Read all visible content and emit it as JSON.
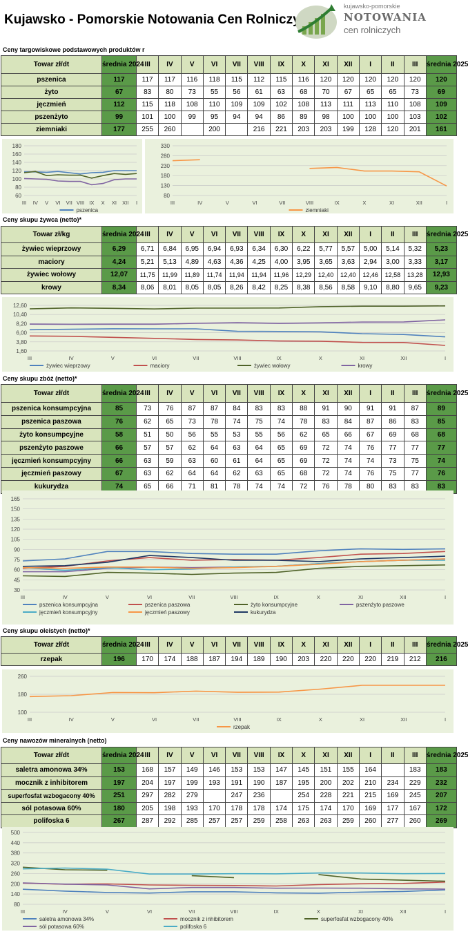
{
  "header": {
    "title": "Kujawsko - Pomorskie Notowania Cen Rolniczych",
    "logo_line1": "kujawsko-pomorskie",
    "logo_line2": "NOTOWANIA",
    "logo_line3": "cen rolniczych"
  },
  "colors": {
    "header_bg": "#d8e4bc",
    "avg_bg": "#5a9a48",
    "chart_bg": "#eaf1dd"
  },
  "months": [
    "III",
    "IV",
    "V",
    "VI",
    "VII",
    "VIII",
    "IX",
    "X",
    "XI",
    "XII",
    "I",
    "II",
    "III"
  ],
  "avg2024_label": "średnia 2024",
  "avg2025_label": "średnia 2025",
  "sections": [
    {
      "title": "Ceny targowiskowe podstawowych produktów r",
      "unit_label": "Towar zł/dt",
      "rows": [
        {
          "name": "pszenica",
          "avg2024": "117",
          "values": [
            "117",
            "117",
            "116",
            "118",
            "115",
            "112",
            "115",
            "116",
            "120",
            "120",
            "120",
            "120",
            "120"
          ],
          "avg2025": "120"
        },
        {
          "name": "żyto",
          "avg2024": "67",
          "values": [
            "83",
            "80",
            "73",
            "55",
            "56",
            "61",
            "63",
            "68",
            "70",
            "67",
            "65",
            "65",
            "73"
          ],
          "avg2025": "69"
        },
        {
          "name": "jęczmień",
          "avg2024": "112",
          "values": [
            "115",
            "118",
            "108",
            "110",
            "109",
            "109",
            "102",
            "108",
            "113",
            "111",
            "113",
            "110",
            "108"
          ],
          "avg2025": "109"
        },
        {
          "name": "pszenżyto",
          "avg2024": "99",
          "values": [
            "101",
            "100",
            "99",
            "95",
            "94",
            "94",
            "86",
            "89",
            "98",
            "100",
            "100",
            "100",
            "103"
          ],
          "avg2025": "102"
        },
        {
          "name": "ziemniaki",
          "avg2024": "177",
          "values": [
            "255",
            "260",
            "",
            "200",
            "",
            "216",
            "221",
            "203",
            "203",
            "199",
            "128",
            "120",
            "201"
          ],
          "avg2025": "161"
        }
      ]
    },
    {
      "title": "Ceny skupu żywca (netto)*",
      "unit_label": "Towar zł/kg",
      "rows": [
        {
          "name": "żywiec wieprzowy",
          "avg2024": "6,29",
          "values": [
            "6,71",
            "6,84",
            "6,95",
            "6,94",
            "6,93",
            "6,34",
            "6,30",
            "6,22",
            "5,77",
            "5,57",
            "5,00",
            "5,14",
            "5,32"
          ],
          "avg2025": "5,23"
        },
        {
          "name": "maciory",
          "avg2024": "4,24",
          "values": [
            "5,21",
            "5,13",
            "4,89",
            "4,63",
            "4,36",
            "4,25",
            "4,00",
            "3,95",
            "3,65",
            "3,63",
            "2,94",
            "3,00",
            "3,33"
          ],
          "avg2025": "3,17"
        },
        {
          "name": "żywiec wołowy",
          "avg2024": "12,07",
          "values": [
            "11,75",
            "11,99",
            "11,89",
            "11,74",
            "11,94",
            "11,94",
            "11,96",
            "12,29",
            "12,40",
            "12,40",
            "12,46",
            "12,58",
            "13,28"
          ],
          "avg2025": "12,93"
        },
        {
          "name": "krowy",
          "avg2024": "8,34",
          "values": [
            "8,06",
            "8,01",
            "8,05",
            "8,05",
            "8,26",
            "8,42",
            "8,25",
            "8,38",
            "8,56",
            "8,58",
            "9,10",
            "8,80",
            "9,65"
          ],
          "avg2025": "9,23"
        }
      ]
    },
    {
      "title": "Ceny skupu zbóż (netto)*",
      "unit_label": "Towar zł/dt",
      "rows": [
        {
          "name": "pszenica konsumpcyjna",
          "avg2024": "85",
          "values": [
            "73",
            "76",
            "87",
            "87",
            "84",
            "83",
            "83",
            "88",
            "91",
            "90",
            "91",
            "91",
            "87"
          ],
          "avg2025": "89"
        },
        {
          "name": "pszenica paszowa",
          "avg2024": "76",
          "values": [
            "62",
            "65",
            "73",
            "78",
            "74",
            "75",
            "74",
            "78",
            "83",
            "84",
            "87",
            "86",
            "83"
          ],
          "avg2025": "85"
        },
        {
          "name": "żyto konsumpcyjne",
          "avg2024": "58",
          "values": [
            "51",
            "50",
            "56",
            "55",
            "53",
            "55",
            "56",
            "62",
            "65",
            "66",
            "67",
            "69",
            "68"
          ],
          "avg2025": "68"
        },
        {
          "name": "pszenżyto paszowe",
          "avg2024": "66",
          "values": [
            "57",
            "57",
            "62",
            "64",
            "63",
            "64",
            "65",
            "69",
            "72",
            "74",
            "76",
            "77",
            "77"
          ],
          "avg2025": "77"
        },
        {
          "name": "jęczmień konsumpcyjny",
          "avg2024": "66",
          "values": [
            "63",
            "59",
            "63",
            "60",
            "61",
            "64",
            "65",
            "69",
            "72",
            "74",
            "74",
            "73",
            "75"
          ],
          "avg2025": "74"
        },
        {
          "name": "jęczmień paszowy",
          "avg2024": "67",
          "values": [
            "63",
            "62",
            "64",
            "64",
            "62",
            "63",
            "65",
            "68",
            "72",
            "74",
            "76",
            "75",
            "77"
          ],
          "avg2025": "76"
        },
        {
          "name": "kukurydza",
          "avg2024": "74",
          "values": [
            "65",
            "66",
            "71",
            "81",
            "78",
            "74",
            "74",
            "72",
            "76",
            "78",
            "80",
            "83",
            "83"
          ],
          "avg2025": "83"
        }
      ]
    },
    {
      "title": "Ceny skupu oleistych (netto)*",
      "unit_label": "Towar zł/dt",
      "rows": [
        {
          "name": "rzepak",
          "avg2024": "196",
          "values": [
            "170",
            "174",
            "188",
            "187",
            "194",
            "189",
            "190",
            "203",
            "220",
            "220",
            "220",
            "219",
            "212"
          ],
          "avg2025": "216"
        }
      ]
    },
    {
      "title": "Ceny nawozów mineralnych (netto)",
      "unit_label": "Towar zł/dt",
      "rows": [
        {
          "name": "saletra amonowa 34%",
          "avg2024": "153",
          "values": [
            "168",
            "157",
            "149",
            "146",
            "153",
            "153",
            "147",
            "145",
            "151",
            "155",
            "164",
            "",
            "183"
          ],
          "avg2025": "183"
        },
        {
          "name": "mocznik z inhibitorem",
          "avg2024": "197",
          "values": [
            "204",
            "197",
            "199",
            "193",
            "191",
            "190",
            "187",
            "195",
            "200",
            "202",
            "210",
            "234",
            "229"
          ],
          "avg2025": "232"
        },
        {
          "name": "superfosfat wzbogacony 40%",
          "avg2024": "251",
          "values": [
            "297",
            "282",
            "279",
            "",
            "247",
            "236",
            "",
            "254",
            "228",
            "221",
            "215",
            "169",
            "245"
          ],
          "avg2025": "207"
        },
        {
          "name": "sól potasowa 60%",
          "avg2024": "180",
          "values": [
            "205",
            "198",
            "193",
            "170",
            "178",
            "178",
            "174",
            "175",
            "174",
            "170",
            "169",
            "177",
            "167"
          ],
          "avg2025": "172"
        },
        {
          "name": "polifoska 6",
          "avg2024": "267",
          "values": [
            "287",
            "292",
            "285",
            "257",
            "257",
            "259",
            "258",
            "263",
            "263",
            "259",
            "260",
            "277",
            "260"
          ],
          "avg2025": "269"
        }
      ]
    }
  ],
  "chart_data": [
    {
      "type": "line",
      "x": [
        "III",
        "IV",
        "V",
        "VI",
        "VII",
        "VIII",
        "IX",
        "X",
        "XI",
        "XII",
        "I"
      ],
      "ylim": [
        60,
        180
      ],
      "yticks": [
        "60",
        "80",
        "100",
        "120",
        "140",
        "160",
        "180"
      ],
      "legend": "bottom",
      "series": [
        {
          "name": "pszenica",
          "color": "#4f81bd",
          "values": [
            117,
            117,
            116,
            118,
            115,
            112,
            115,
            116,
            120,
            120,
            120
          ]
        },
        {
          "name": "",
          "color": "#4f6228",
          "values": [
            115,
            118,
            108,
            110,
            109,
            109,
            102,
            108,
            113,
            111,
            113
          ]
        },
        {
          "name": "",
          "color": "#8064a2",
          "values": [
            101,
            100,
            99,
            95,
            94,
            94,
            86,
            89,
            98,
            100,
            100
          ]
        }
      ]
    },
    {
      "type": "line",
      "x": [
        "III",
        "IV",
        "V",
        "VI",
        "VII",
        "VIII",
        "IX",
        "X",
        "XI",
        "XII",
        "I"
      ],
      "ylim": [
        80,
        330
      ],
      "yticks": [
        "80",
        "130",
        "180",
        "230",
        "280",
        "330"
      ],
      "legend": "bottom",
      "series": [
        {
          "name": "ziemniaki",
          "color": "#f79646",
          "values": [
            255,
            260,
            null,
            200,
            null,
            216,
            221,
            203,
            203,
            199,
            128
          ]
        }
      ]
    },
    {
      "type": "line",
      "x": [
        "III",
        "IV",
        "V",
        "VI",
        "VII",
        "VIII",
        "IX",
        "X",
        "XI",
        "XII",
        "I"
      ],
      "ylim": [
        1.6,
        12.6
      ],
      "yticks": [
        "1,60",
        "3,80",
        "6,00",
        "8,20",
        "10,40",
        "12,60"
      ],
      "legend": "bottom",
      "series": [
        {
          "name": "żywiec wieprzowy",
          "color": "#4f81bd",
          "values": [
            6.71,
            6.84,
            6.95,
            6.94,
            6.93,
            6.34,
            6.3,
            6.22,
            5.77,
            5.57,
            5.0
          ]
        },
        {
          "name": "maciory",
          "color": "#c0504d",
          "values": [
            5.21,
            5.13,
            4.89,
            4.63,
            4.36,
            4.25,
            4.0,
            3.95,
            3.65,
            3.63,
            2.94
          ]
        },
        {
          "name": "żywiec wołowy",
          "color": "#4f6228",
          "values": [
            11.75,
            11.99,
            11.89,
            11.74,
            11.94,
            11.94,
            11.96,
            12.29,
            12.4,
            12.4,
            12.46
          ]
        },
        {
          "name": "krowy",
          "color": "#8064a2",
          "values": [
            8.06,
            8.01,
            8.05,
            8.05,
            8.26,
            8.42,
            8.25,
            8.38,
            8.56,
            8.58,
            9.1
          ]
        }
      ]
    },
    {
      "type": "line",
      "x": [
        "III",
        "IV",
        "V",
        "VI",
        "VII",
        "VIII",
        "IX",
        "X",
        "XI",
        "XII",
        "I"
      ],
      "ylim": [
        30,
        165
      ],
      "yticks": [
        "30",
        "45",
        "60",
        "75",
        "90",
        "105",
        "120",
        "135",
        "150",
        "165"
      ],
      "legend": "bottom",
      "series": [
        {
          "name": "pszenica konsumpcyjna",
          "color": "#4f81bd",
          "values": [
            73,
            76,
            87,
            87,
            84,
            83,
            83,
            88,
            91,
            90,
            91
          ]
        },
        {
          "name": "pszenica paszowa",
          "color": "#c0504d",
          "values": [
            62,
            65,
            73,
            78,
            74,
            75,
            74,
            78,
            83,
            84,
            87
          ]
        },
        {
          "name": "żyto konsumpcyjne",
          "color": "#4f6228",
          "values": [
            51,
            50,
            56,
            55,
            53,
            55,
            56,
            62,
            65,
            66,
            67
          ]
        },
        {
          "name": "pszenżyto paszowe",
          "color": "#8064a2",
          "values": [
            57,
            57,
            62,
            64,
            63,
            64,
            65,
            69,
            72,
            74,
            76
          ]
        },
        {
          "name": "jęczmień konsumpcyjny",
          "color": "#4bacc6",
          "values": [
            63,
            59,
            63,
            60,
            61,
            64,
            65,
            69,
            72,
            74,
            74
          ]
        },
        {
          "name": "jęczmień paszowy",
          "color": "#f79646",
          "values": [
            63,
            62,
            64,
            64,
            62,
            63,
            65,
            68,
            72,
            74,
            76
          ]
        },
        {
          "name": "kukurydza",
          "color": "#1f3864",
          "values": [
            65,
            66,
            71,
            81,
            78,
            74,
            74,
            72,
            76,
            78,
            80
          ]
        }
      ]
    },
    {
      "type": "line",
      "x": [
        "III",
        "IV",
        "V",
        "VI",
        "VII",
        "VIII",
        "IX",
        "X",
        "XI",
        "XII",
        "I"
      ],
      "ylim": [
        100,
        260
      ],
      "yticks": [
        "100",
        "180",
        "260"
      ],
      "legend": "bottom",
      "series": [
        {
          "name": "rzepak",
          "color": "#f79646",
          "values": [
            170,
            174,
            188,
            187,
            194,
            189,
            190,
            203,
            220,
            220,
            220
          ]
        }
      ]
    },
    {
      "type": "line",
      "x": [
        "III",
        "IV",
        "V",
        "VI",
        "VII",
        "VIII",
        "IX",
        "X",
        "XI",
        "XII",
        "I"
      ],
      "ylim": [
        80,
        500
      ],
      "yticks": [
        "80",
        "140",
        "200",
        "260",
        "320",
        "380",
        "440",
        "500"
      ],
      "legend": "bottom",
      "series": [
        {
          "name": "saletra amonowa 34%",
          "color": "#4f81bd",
          "values": [
            168,
            157,
            149,
            146,
            153,
            153,
            147,
            145,
            151,
            155,
            164
          ]
        },
        {
          "name": "mocznik z inhibitorem",
          "color": "#c0504d",
          "values": [
            204,
            197,
            199,
            193,
            191,
            190,
            187,
            195,
            200,
            202,
            210
          ]
        },
        {
          "name": "superfosfat wzbogacony 40%",
          "color": "#4f6228",
          "values": [
            297,
            282,
            279,
            null,
            247,
            236,
            null,
            254,
            228,
            221,
            215
          ]
        },
        {
          "name": "sól potasowa 60%",
          "color": "#8064a2",
          "values": [
            205,
            198,
            193,
            170,
            178,
            178,
            174,
            175,
            174,
            170,
            169
          ]
        },
        {
          "name": "polifoska 6",
          "color": "#4bacc6",
          "values": [
            287,
            292,
            285,
            257,
            257,
            259,
            258,
            263,
            263,
            259,
            260
          ]
        }
      ]
    }
  ]
}
